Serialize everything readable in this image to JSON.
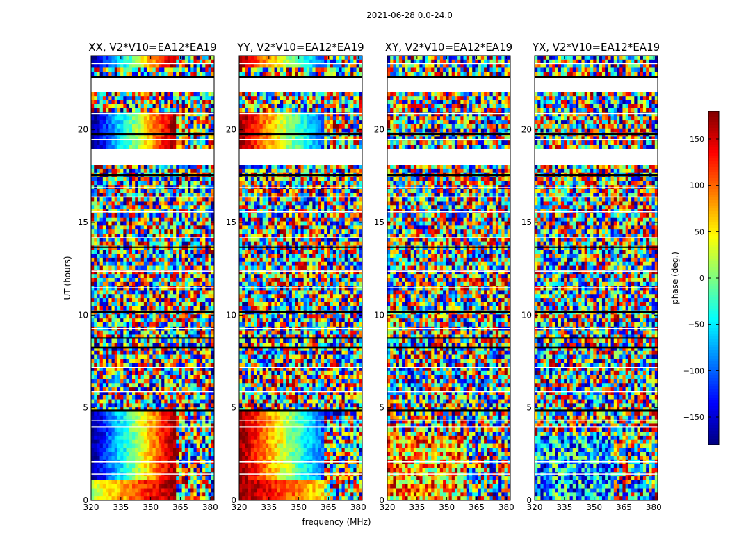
{
  "figure_title": "2021-06-28 0.0-24.0",
  "chart_data": {
    "type": "heatmap",
    "title": "2021-06-28 0.0-24.0",
    "xlabel": "frequency (MHz)",
    "ylabel": "UT (hours)",
    "xlim": [
      320,
      382
    ],
    "ylim": [
      0,
      24
    ],
    "xticks": [
      "320",
      "335",
      "350",
      "365",
      "380"
    ],
    "yticks": [
      "0",
      "5",
      "10",
      "15",
      "20"
    ],
    "panels": [
      {
        "title": "XX, V2*V10=EA12*EA19",
        "pol": "XX"
      },
      {
        "title": "YY, V2*V10=EA12*EA19",
        "pol": "YY"
      },
      {
        "title": "XY, V2*V10=EA12*EA19",
        "pol": "XY"
      },
      {
        "title": "YX, V2*V10=EA12*EA19",
        "pol": "YX"
      }
    ],
    "colorbar": {
      "label": "phase (deg.)",
      "range": [
        -180,
        180
      ],
      "ticks": [
        "150",
        "100",
        "50",
        "0",
        "−50",
        "−100",
        "−150"
      ],
      "tick_values": [
        150,
        100,
        50,
        0,
        -50,
        -100,
        -150
      ],
      "colormap": "jet"
    },
    "blank_ut_ranges": [
      [
        18.2,
        19.0
      ],
      [
        22.0,
        23.0
      ],
      [
        17.8,
        18.0
      ]
    ],
    "coherent_ut_ranges": [
      [
        0.0,
        4.7
      ],
      [
        18.6,
        21.0
      ],
      [
        23.3,
        24.0
      ]
    ]
  },
  "colors": {
    "background": "#ffffff",
    "axes": "#000000"
  }
}
